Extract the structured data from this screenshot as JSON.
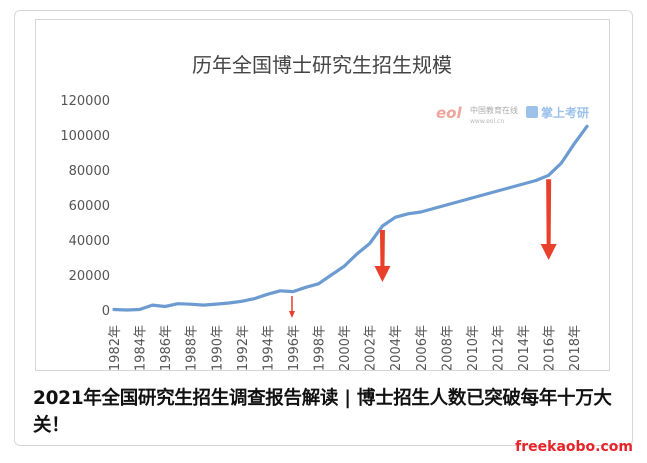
{
  "chart_data": {
    "type": "line",
    "title": "历年全国博士研究生招生规模",
    "x": [
      "1982年",
      "1983年",
      "1984年",
      "1985年",
      "1986年",
      "1987年",
      "1988年",
      "1989年",
      "1990年",
      "1991年",
      "1992年",
      "1993年",
      "1994年",
      "1995年",
      "1996年",
      "1997年",
      "1998年",
      "1999年",
      "2000年",
      "2001年",
      "2002年",
      "2003年",
      "2004年",
      "2005年",
      "2006年",
      "2007年",
      "2008年",
      "2009年",
      "2010年",
      "2011年",
      "2012年",
      "2013年",
      "2014年",
      "2015年",
      "2016年",
      "2017年",
      "2018年",
      "2019年"
    ],
    "x_tick_labels": [
      "1982年",
      "1984年",
      "1986年",
      "1988年",
      "1990年",
      "1992年",
      "1994年",
      "1996年",
      "1998年",
      "2000年",
      "2002年",
      "2004年",
      "2006年",
      "2008年",
      "2010年",
      "2012年",
      "2014年",
      "2016年",
      "2018年"
    ],
    "series": [
      {
        "color": "#6b9bd1",
        "values": [
          300,
          0,
          300,
          2800,
          2000,
          3600,
          3300,
          2800,
          3400,
          4000,
          5000,
          6500,
          9000,
          11000,
          10500,
          13000,
          15000,
          20000,
          25000,
          32000,
          38000,
          48000,
          53000,
          55000,
          56000,
          58000,
          60000,
          62000,
          64000,
          66000,
          68000,
          70000,
          72000,
          74000,
          77000,
          84000,
          95000,
          105000
        ]
      }
    ],
    "ylim": [
      0,
      120000
    ],
    "y_ticks": [
      "0",
      "20000",
      "40000",
      "60000",
      "80000",
      "100000",
      "120000"
    ],
    "grid": false,
    "annotations": [
      {
        "type": "arrow-down",
        "x": "1996年",
        "size": "small",
        "color": "#e8402a"
      },
      {
        "type": "arrow-down",
        "x": "2003年",
        "size": "large",
        "color": "#e8402a"
      },
      {
        "type": "arrow-down",
        "x": "2016年",
        "size": "large",
        "color": "#e8402a"
      }
    ],
    "logo": {
      "text_cn": "中国教育在线",
      "text_url": "www.eol.cn",
      "text_app": "掌上考研"
    }
  },
  "caption": "2021年全国研究生招生调查报告解读 | 博士招生人数已突破每年十万大关！",
  "watermark": "freekaobo.com",
  "colors": {
    "line": "#6b9bd1",
    "arrow": "#e8402a",
    "watermark": "#e8242a"
  }
}
